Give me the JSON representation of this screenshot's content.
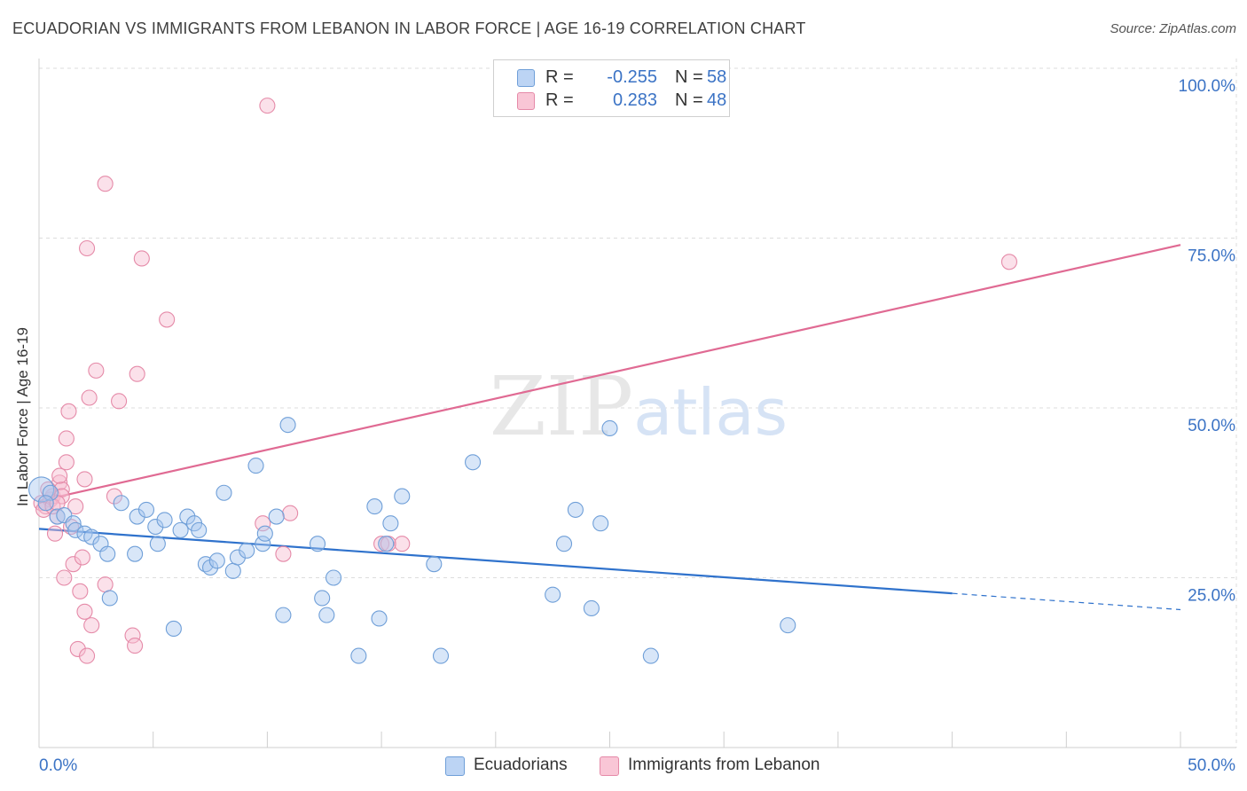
{
  "title": "ECUADORIAN VS IMMIGRANTS FROM LEBANON IN LABOR FORCE | AGE 16-19 CORRELATION CHART",
  "source": "Source: ZipAtlas.com",
  "legend": {
    "rows": [
      {
        "r_label": "R =",
        "r_value": "-0.255",
        "n_label": "N =",
        "n_value": "58"
      },
      {
        "r_label": "R =",
        "r_value": "0.283",
        "n_label": "N =",
        "n_value": "48"
      }
    ]
  },
  "bottom_legend": {
    "ecuadorians": "Ecuadorians",
    "lebanon": "Immigrants from Lebanon"
  },
  "colors": {
    "blue_fill": "#a9c8f0",
    "blue_stroke": "#6f9fd8",
    "blue_line": "#2f72cc",
    "pink_fill": "#f7bcd0",
    "pink_stroke": "#e58aa8",
    "pink_line": "#e06a93",
    "tick_label": "#3b73c5",
    "grid": "#dcdcdc"
  },
  "chart_data": {
    "type": "scatter",
    "title": "ECUADORIAN VS IMMIGRANTS FROM LEBANON IN LABOR FORCE | AGE 16-19 CORRELATION CHART",
    "xlabel": "",
    "ylabel": "In Labor Force | Age 16-19",
    "xlim": [
      0,
      50
    ],
    "ylim": [
      0,
      105
    ],
    "x_tick_labels": [
      "0.0%",
      "50.0%"
    ],
    "y_ticks": [
      25,
      50,
      75,
      100
    ],
    "y_tick_labels": [
      "25.0%",
      "50.0%",
      "75.0%",
      "100.0%"
    ],
    "grid": true,
    "legend_placement": "top-center",
    "watermark": "ZIPatlas",
    "series": [
      {
        "name": "Ecuadorians",
        "r": -0.255,
        "n": 58,
        "trend": {
          "x0": 0,
          "y0": 32.2,
          "x1": 40,
          "y1": 22.7,
          "dash_to_x": 50,
          "dash_to_y": 20.3
        },
        "points": [
          [
            0.1,
            38.0
          ],
          [
            0.5,
            37.5
          ],
          [
            0.8,
            34.0
          ],
          [
            1.1,
            34.2
          ],
          [
            1.5,
            33.0
          ],
          [
            1.6,
            32.0
          ],
          [
            2.0,
            31.5
          ],
          [
            2.3,
            31.0
          ],
          [
            2.7,
            30.0
          ],
          [
            3.0,
            28.5
          ],
          [
            3.1,
            22.0
          ],
          [
            3.6,
            36.0
          ],
          [
            4.2,
            28.5
          ],
          [
            4.3,
            34.0
          ],
          [
            4.7,
            35.0
          ],
          [
            5.1,
            32.5
          ],
          [
            5.2,
            30.0
          ],
          [
            5.5,
            33.5
          ],
          [
            5.9,
            17.5
          ],
          [
            6.2,
            32.0
          ],
          [
            6.5,
            34.0
          ],
          [
            6.8,
            33.0
          ],
          [
            7.0,
            32.0
          ],
          [
            7.3,
            27.0
          ],
          [
            7.5,
            26.5
          ],
          [
            7.8,
            27.5
          ],
          [
            8.1,
            37.5
          ],
          [
            8.5,
            26.0
          ],
          [
            8.7,
            28.0
          ],
          [
            9.1,
            29.0
          ],
          [
            9.5,
            41.5
          ],
          [
            9.8,
            30.0
          ],
          [
            9.9,
            31.5
          ],
          [
            10.4,
            34.0
          ],
          [
            10.7,
            19.5
          ],
          [
            10.9,
            47.5
          ],
          [
            12.2,
            30.0
          ],
          [
            12.4,
            22.0
          ],
          [
            12.6,
            19.5
          ],
          [
            12.9,
            25.0
          ],
          [
            14.0,
            13.5
          ],
          [
            14.7,
            35.5
          ],
          [
            14.9,
            19.0
          ],
          [
            15.2,
            30.0
          ],
          [
            15.4,
            33.0
          ],
          [
            15.9,
            37.0
          ],
          [
            17.3,
            27.0
          ],
          [
            17.6,
            13.5
          ],
          [
            19.0,
            42.0
          ],
          [
            22.5,
            22.5
          ],
          [
            23.0,
            30.0
          ],
          [
            23.5,
            35.0
          ],
          [
            24.2,
            20.5
          ],
          [
            24.6,
            33.0
          ],
          [
            25.0,
            47.0
          ],
          [
            26.8,
            13.5
          ],
          [
            32.8,
            18.0
          ],
          [
            0.3,
            36.0
          ]
        ]
      },
      {
        "name": "Immigrants from Lebanon",
        "r": 0.283,
        "n": 48,
        "trend": {
          "x0": 0,
          "y0": 36.3,
          "x1": 50,
          "y1": 74.0
        },
        "points": [
          [
            0.1,
            36.0
          ],
          [
            0.3,
            35.5
          ],
          [
            0.5,
            36.5
          ],
          [
            0.6,
            37.0
          ],
          [
            0.7,
            31.5
          ],
          [
            0.8,
            34.0
          ],
          [
            0.9,
            39.0
          ],
          [
            1.0,
            38.0
          ],
          [
            1.1,
            25.0
          ],
          [
            1.2,
            42.0
          ],
          [
            1.2,
            45.5
          ],
          [
            1.3,
            49.5
          ],
          [
            1.4,
            32.5
          ],
          [
            1.5,
            27.0
          ],
          [
            1.6,
            35.5
          ],
          [
            1.7,
            14.5
          ],
          [
            1.8,
            23.0
          ],
          [
            1.9,
            28.0
          ],
          [
            2.0,
            20.0
          ],
          [
            2.0,
            39.5
          ],
          [
            2.1,
            73.5
          ],
          [
            2.1,
            13.5
          ],
          [
            2.2,
            51.5
          ],
          [
            2.3,
            18.0
          ],
          [
            2.5,
            55.5
          ],
          [
            2.9,
            83.0
          ],
          [
            2.9,
            24.0
          ],
          [
            3.3,
            37.0
          ],
          [
            3.5,
            51.0
          ],
          [
            4.1,
            16.5
          ],
          [
            4.2,
            15.0
          ],
          [
            4.3,
            55.0
          ],
          [
            4.5,
            72.0
          ],
          [
            5.6,
            63.0
          ],
          [
            9.8,
            33.0
          ],
          [
            10.0,
            94.5
          ],
          [
            10.7,
            28.5
          ],
          [
            11.0,
            34.5
          ],
          [
            15.0,
            30.0
          ],
          [
            15.3,
            30.0
          ],
          [
            15.9,
            30.0
          ],
          [
            42.5,
            71.5
          ],
          [
            0.2,
            35.0
          ],
          [
            0.4,
            38.0
          ],
          [
            0.9,
            40.0
          ],
          [
            1.0,
            37.0
          ],
          [
            0.6,
            35.5
          ],
          [
            0.8,
            36.0
          ]
        ]
      }
    ]
  }
}
